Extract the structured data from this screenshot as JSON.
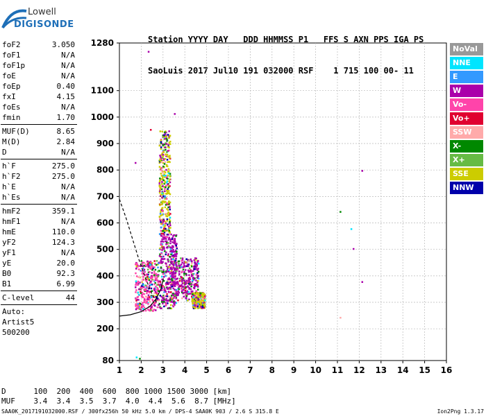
{
  "logo": {
    "line1": "Lowell",
    "line2": "DIGISONDE"
  },
  "header": {
    "row1": "Station YYYY DAY   DDD HHMMSS P1   FFS S AXN PPS IGA PS",
    "row2": "SaoLuis 2017 Jul10 191 032000 RSF    1 715 100 00- 11"
  },
  "params_group1": [
    {
      "name": "foF2",
      "value": "3.050"
    },
    {
      "name": "foF1",
      "value": "N/A"
    },
    {
      "name": "foF1p",
      "value": "N/A"
    },
    {
      "name": "foE",
      "value": "N/A"
    },
    {
      "name": "foEp",
      "value": "0.40"
    },
    {
      "name": "fxI",
      "value": "4.15"
    },
    {
      "name": "foEs",
      "value": "N/A"
    },
    {
      "name": "fmin",
      "value": "1.70"
    }
  ],
  "params_group2": [
    {
      "name": "MUF(D)",
      "value": "8.65"
    },
    {
      "name": "M(D)",
      "value": "2.84"
    },
    {
      "name": "D",
      "value": "N/A"
    }
  ],
  "params_group3": [
    {
      "name": "h`F",
      "value": "275.0"
    },
    {
      "name": "h`F2",
      "value": "275.0"
    },
    {
      "name": "h`E",
      "value": "N/A"
    },
    {
      "name": "h`Es",
      "value": "N/A"
    }
  ],
  "params_group4": [
    {
      "name": "hmF2",
      "value": "359.1"
    },
    {
      "name": "hmF1",
      "value": "N/A"
    },
    {
      "name": "hmE",
      "value": "110.0"
    },
    {
      "name": "yF2",
      "value": "124.3"
    },
    {
      "name": "yF1",
      "value": "N/A"
    },
    {
      "name": "yE",
      "value": "20.0"
    },
    {
      "name": "B0",
      "value": "92.3"
    },
    {
      "name": "B1",
      "value": "6.99"
    }
  ],
  "clevel": {
    "name": "C-level",
    "value": "44"
  },
  "auto": [
    "Auto:",
    "Artist5",
    "500200"
  ],
  "legend": [
    {
      "label": "NoVal",
      "color": "#999999"
    },
    {
      "label": "NNE",
      "color": "#00e5ff"
    },
    {
      "label": "E",
      "color": "#3399ff"
    },
    {
      "label": "W",
      "color": "#aa00aa"
    },
    {
      "label": "Vo-",
      "color": "#ff44aa"
    },
    {
      "label": "Vo+",
      "color": "#e00030"
    },
    {
      "label": "SSW",
      "color": "#ffaaaa"
    },
    {
      "label": "X-",
      "color": "#008800"
    },
    {
      "label": "X+",
      "color": "#66bb44"
    },
    {
      "label": "SSE",
      "color": "#cccc00"
    },
    {
      "label": "NNW",
      "color": "#0000aa"
    }
  ],
  "muf_table": {
    "d_row": "D      100  200  400  600  800 1000 1500 3000 [km]",
    "muf_row": "MUF    3.4  3.4  3.5  3.7  4.0  4.4  5.6  8.7 [MHz]"
  },
  "footer": {
    "left": "SAA0K_2017191032000.RSF / 300fx256h 50 kHz 5.0 km / DPS-4 SAA0K 903 / 2.6 S 315.8 E",
    "right": "Ion2Png 1.3.17"
  },
  "chart_data": {
    "type": "scatter",
    "xlabel": "",
    "ylabel": "",
    "xlim": [
      1,
      16
    ],
    "ylim": [
      80,
      1280
    ],
    "x_ticks": [
      "1",
      "2",
      "3",
      "4",
      "5",
      "6",
      "7",
      "8",
      "9",
      "10",
      "11",
      "12",
      "13",
      "14",
      "15",
      "16"
    ],
    "y_ticks": [
      80,
      200,
      300,
      400,
      500,
      600,
      700,
      800,
      900,
      1000,
      1100,
      1280
    ],
    "grid": true,
    "clusters": [
      {
        "x_range": [
          1.7,
          2.8
        ],
        "y_range": [
          270,
          460
        ],
        "dominant": "Vo-"
      },
      {
        "x_range": [
          2.8,
          3.6
        ],
        "y_range": [
          280,
          560
        ],
        "dominant": "W"
      },
      {
        "x_range": [
          3.3,
          4.6
        ],
        "y_range": [
          310,
          470
        ],
        "dominant": "W"
      },
      {
        "x_range": [
          2.8,
          3.3
        ],
        "y_range": [
          560,
          950
        ],
        "dominant": "SSE"
      },
      {
        "x_range": [
          4.3,
          4.9
        ],
        "y_range": [
          280,
          340
        ],
        "dominant": "SSE"
      }
    ],
    "isolated_points": [
      {
        "x": 2.3,
        "y": 1250,
        "legend": "W"
      },
      {
        "x": 2.4,
        "y": 955,
        "legend": "Vo+"
      },
      {
        "x": 3.5,
        "y": 1015,
        "legend": "W"
      },
      {
        "x": 1.7,
        "y": 830,
        "legend": "W"
      },
      {
        "x": 11.1,
        "y": 645,
        "legend": "X-"
      },
      {
        "x": 11.6,
        "y": 580,
        "legend": "NNE"
      },
      {
        "x": 11.7,
        "y": 505,
        "legend": "W"
      },
      {
        "x": 12.1,
        "y": 800,
        "legend": "W"
      },
      {
        "x": 12.1,
        "y": 380,
        "legend": "W"
      },
      {
        "x": 11.1,
        "y": 245,
        "legend": "SSW"
      },
      {
        "x": 1.75,
        "y": 95,
        "legend": "NNE"
      },
      {
        "x": 1.9,
        "y": 90,
        "legend": "X-"
      }
    ],
    "profile_curve": [
      [
        1.0,
        248
      ],
      [
        1.5,
        253
      ],
      [
        2.0,
        265
      ],
      [
        2.4,
        285
      ],
      [
        2.7,
        315
      ],
      [
        2.9,
        350
      ],
      [
        3.02,
        390
      ]
    ],
    "dashed_curve": [
      [
        1.0,
        690
      ],
      [
        1.3,
        620
      ],
      [
        1.6,
        540
      ],
      [
        1.9,
        460
      ],
      [
        2.2,
        390
      ],
      [
        2.5,
        330
      ],
      [
        2.7,
        300
      ]
    ]
  }
}
